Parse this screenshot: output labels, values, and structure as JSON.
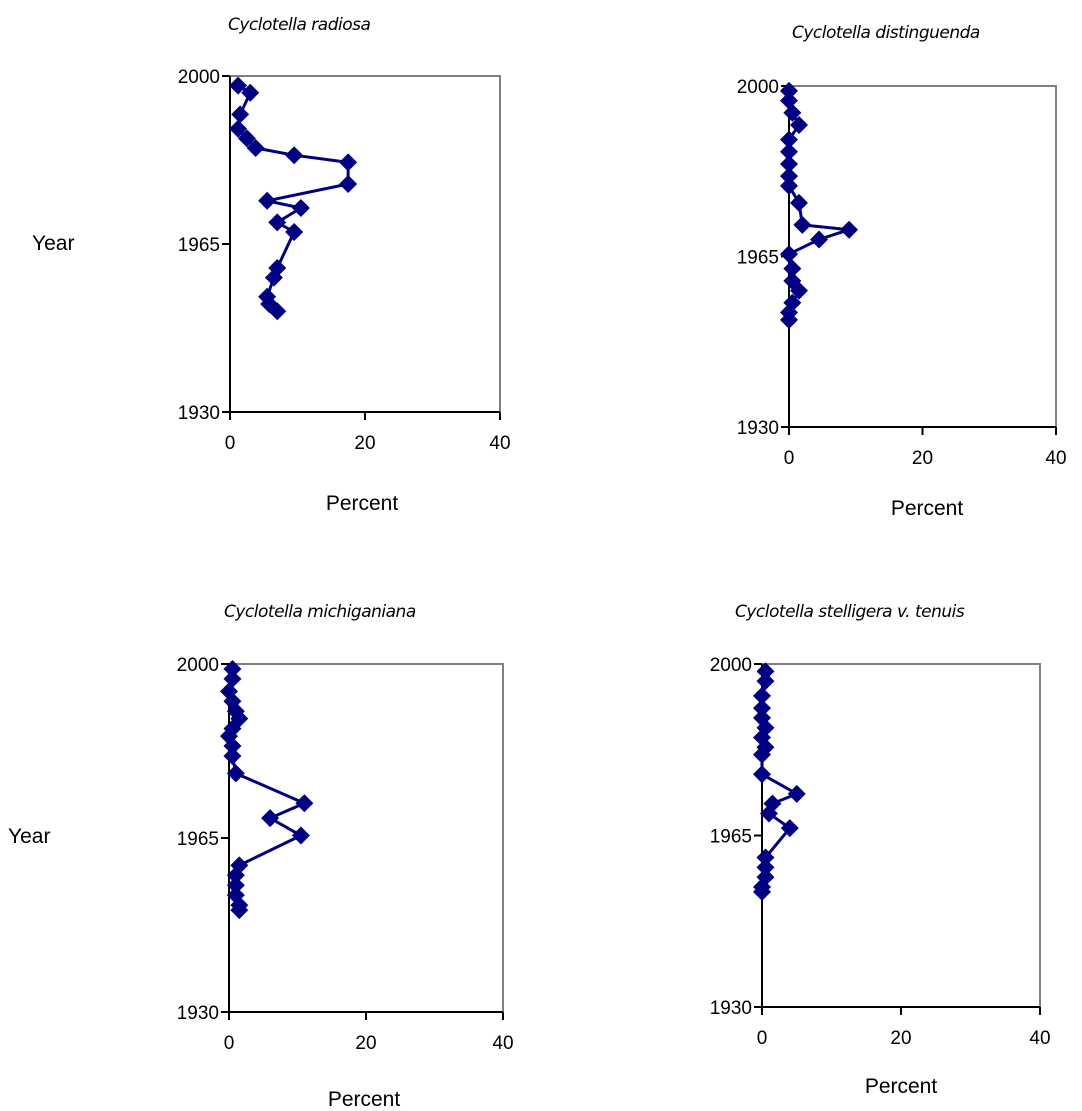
{
  "chart_data": [
    {
      "type": "scatter",
      "title": "Cyclotella radiosa",
      "xlabel": "Percent",
      "ylabel": "Year",
      "xlim": [
        0,
        40
      ],
      "ylim": [
        1930,
        2000
      ],
      "xticks": [
        "0",
        "20",
        "40"
      ],
      "yticks": [
        "1930",
        "1965",
        "2000"
      ],
      "grid": false,
      "marker": "diamond",
      "color": "#000080",
      "points": [
        {
          "x": 1.2,
          "y": 1998
        },
        {
          "x": 3.0,
          "y": 1996.5
        },
        {
          "x": 1.5,
          "y": 1992
        },
        {
          "x": 1.2,
          "y": 1989
        },
        {
          "x": 2.5,
          "y": 1987
        },
        {
          "x": 3.8,
          "y": 1985
        },
        {
          "x": 9.5,
          "y": 1983.5
        },
        {
          "x": 17.5,
          "y": 1982
        },
        {
          "x": 17.5,
          "y": 1977.5
        },
        {
          "x": 5.5,
          "y": 1974
        },
        {
          "x": 10.5,
          "y": 1972.5
        },
        {
          "x": 7.0,
          "y": 1969.5
        },
        {
          "x": 9.5,
          "y": 1967.5
        },
        {
          "x": 7.0,
          "y": 1960
        },
        {
          "x": 6.5,
          "y": 1958
        },
        {
          "x": 5.5,
          "y": 1954
        },
        {
          "x": 5.8,
          "y": 1952.5
        },
        {
          "x": 7.0,
          "y": 1951
        }
      ]
    },
    {
      "type": "scatter",
      "title": "Cyclotella distinguenda",
      "xlabel": "Percent",
      "ylabel": "",
      "xlim": [
        0,
        40
      ],
      "ylim": [
        1930,
        2000
      ],
      "xticks": [
        "0",
        "20",
        "40"
      ],
      "yticks": [
        "1930",
        "1965",
        "2000"
      ],
      "grid": false,
      "marker": "diamond",
      "color": "#000080",
      "points": [
        {
          "x": 0.0,
          "y": 1999
        },
        {
          "x": 0.0,
          "y": 1997
        },
        {
          "x": 0.5,
          "y": 1994.5
        },
        {
          "x": 1.5,
          "y": 1992
        },
        {
          "x": 0.0,
          "y": 1989
        },
        {
          "x": 0.0,
          "y": 1986.5
        },
        {
          "x": 0.0,
          "y": 1984
        },
        {
          "x": 0.0,
          "y": 1981.5
        },
        {
          "x": 0.0,
          "y": 1979.5
        },
        {
          "x": 1.5,
          "y": 1976
        },
        {
          "x": 2.0,
          "y": 1971.5
        },
        {
          "x": 9.0,
          "y": 1970.5
        },
        {
          "x": 4.5,
          "y": 1968.5
        },
        {
          "x": 0.0,
          "y": 1965.5
        },
        {
          "x": 0.5,
          "y": 1962.5
        },
        {
          "x": 0.5,
          "y": 1960
        },
        {
          "x": 1.5,
          "y": 1958
        },
        {
          "x": 0.5,
          "y": 1955.5
        },
        {
          "x": 0.0,
          "y": 1953.5
        },
        {
          "x": 0.0,
          "y": 1952
        }
      ]
    },
    {
      "type": "scatter",
      "title": "Cyclotella michiganiana",
      "xlabel": "Percent",
      "ylabel": "Year",
      "xlim": [
        0,
        40
      ],
      "ylim": [
        1930,
        2000
      ],
      "xticks": [
        "0",
        "20",
        "40"
      ],
      "yticks": [
        "1930",
        "1965",
        "2000"
      ],
      "grid": false,
      "marker": "diamond",
      "color": "#000080",
      "points": [
        {
          "x": 0.5,
          "y": 1999
        },
        {
          "x": 0.5,
          "y": 1997
        },
        {
          "x": 0.0,
          "y": 1994.5
        },
        {
          "x": 0.5,
          "y": 1992.5
        },
        {
          "x": 1.0,
          "y": 1990.5
        },
        {
          "x": 1.5,
          "y": 1989
        },
        {
          "x": 0.5,
          "y": 1987
        },
        {
          "x": 0.0,
          "y": 1985.5
        },
        {
          "x": 0.5,
          "y": 1983.5
        },
        {
          "x": 0.5,
          "y": 1981.5
        },
        {
          "x": 1.0,
          "y": 1978
        },
        {
          "x": 11.0,
          "y": 1972
        },
        {
          "x": 6.0,
          "y": 1969
        },
        {
          "x": 10.5,
          "y": 1965.5
        },
        {
          "x": 1.5,
          "y": 1959.5
        },
        {
          "x": 1.0,
          "y": 1957.5
        },
        {
          "x": 1.0,
          "y": 1955.5
        },
        {
          "x": 1.0,
          "y": 1953.5
        },
        {
          "x": 1.5,
          "y": 1951.5
        },
        {
          "x": 1.5,
          "y": 1950.5
        }
      ]
    },
    {
      "type": "scatter",
      "title": "Cyclotella stelligera v. tenuis",
      "xlabel": "Percent",
      "ylabel": "",
      "xlim": [
        0,
        40
      ],
      "ylim": [
        1930,
        2000
      ],
      "xticks": [
        "0",
        "20",
        "40"
      ],
      "yticks": [
        "1930",
        "1965",
        "2000"
      ],
      "grid": false,
      "marker": "diamond",
      "color": "#000080",
      "points": [
        {
          "x": 0.5,
          "y": 1998.5
        },
        {
          "x": 0.5,
          "y": 1996.5
        },
        {
          "x": 0.0,
          "y": 1993.5
        },
        {
          "x": 0.0,
          "y": 1991
        },
        {
          "x": 0.0,
          "y": 1989
        },
        {
          "x": 0.5,
          "y": 1987
        },
        {
          "x": 0.0,
          "y": 1985
        },
        {
          "x": 0.5,
          "y": 1983
        },
        {
          "x": 0.0,
          "y": 1981.5
        },
        {
          "x": 0.0,
          "y": 1977.5
        },
        {
          "x": 5.0,
          "y": 1973.5
        },
        {
          "x": 1.5,
          "y": 1971.5
        },
        {
          "x": 1.0,
          "y": 1969.5
        },
        {
          "x": 4.0,
          "y": 1966.5
        },
        {
          "x": 0.5,
          "y": 1960.5
        },
        {
          "x": 0.5,
          "y": 1958.5
        },
        {
          "x": 0.5,
          "y": 1956.5
        },
        {
          "x": 0.0,
          "y": 1954.5
        },
        {
          "x": 0.0,
          "y": 1953.5
        }
      ]
    }
  ]
}
